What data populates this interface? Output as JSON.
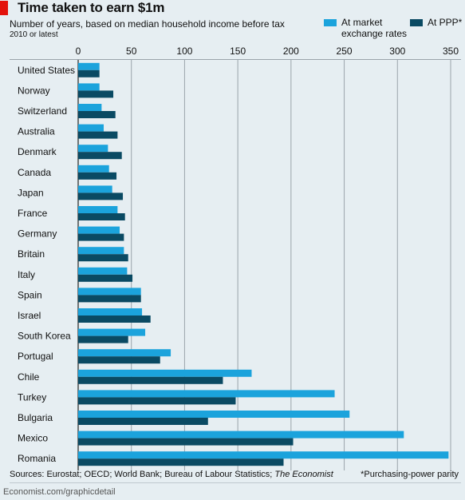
{
  "header": {
    "title": "Time taken to earn $1m",
    "subtitle": "Number of years, based on median household income before tax",
    "note": "2010 or latest"
  },
  "legend": {
    "market_label_line1": "At market",
    "market_label_line2": "exchange rates",
    "ppp_label": "At PPP*"
  },
  "footer": {
    "sources_prefix": "Sources: Eurostat; OECD; World Bank; Bureau of Labour Statistics; ",
    "sources_italic": "The Economist",
    "footnote": "*Purchasing-power parity",
    "credit": "Economist.com/graphicdetail"
  },
  "colors": {
    "market": "#1ba3dc",
    "ppp": "#0a4a63",
    "grid": "#9aa4ab",
    "accent": "#e3120b"
  },
  "chart_data": {
    "type": "bar",
    "orientation": "horizontal",
    "title": "Time taken to earn $1m",
    "subtitle": "Number of years, based on median household income before tax",
    "xlim": [
      0,
      350
    ],
    "xticks": [
      0,
      50,
      100,
      150,
      200,
      250,
      300,
      350
    ],
    "grid": true,
    "legend_position": "top-right",
    "categories": [
      "United States",
      "Norway",
      "Switzerland",
      "Australia",
      "Denmark",
      "Canada",
      "Japan",
      "France",
      "Germany",
      "Britain",
      "Italy",
      "Spain",
      "Israel",
      "South Korea",
      "Portugal",
      "Chile",
      "Turkey",
      "Bulgaria",
      "Mexico",
      "Romania"
    ],
    "series": [
      {
        "name": "At market exchange rates",
        "values": [
          20,
          20,
          22,
          24,
          28,
          29,
          32,
          37,
          39,
          43,
          46,
          59,
          60,
          63,
          87,
          163,
          241,
          255,
          306,
          348
        ]
      },
      {
        "name": "At PPP*",
        "values": [
          20,
          33,
          35,
          37,
          41,
          36,
          42,
          44,
          43,
          47,
          51,
          59,
          68,
          47,
          77,
          136,
          148,
          122,
          202,
          193
        ]
      }
    ]
  }
}
